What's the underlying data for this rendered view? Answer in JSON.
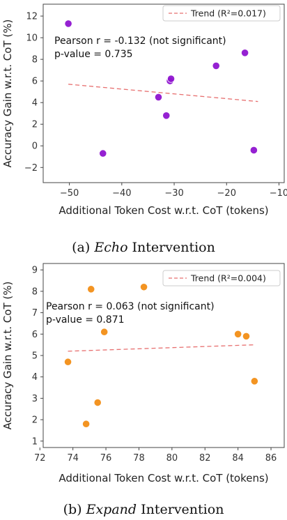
{
  "chart_data": [
    {
      "type": "scatter",
      "xlabel": "Additional Token Cost w.r.t. CoT (tokens)",
      "ylabel": "Accuracy Gain w.r.t. CoT (%)",
      "xlim": [
        -55,
        -9
      ],
      "ylim": [
        -3.4,
        13.1
      ],
      "xticks": [
        -50,
        -40,
        -30,
        -20,
        -10
      ],
      "yticks": [
        -2,
        0,
        2,
        4,
        6,
        8,
        10,
        12
      ],
      "grid": false,
      "point_color": "#8f15d0",
      "trend_color": "#e76f6f",
      "legend_position": "top-right",
      "series": [
        {
          "x": [
            -50.2,
            -43.6,
            -33.0,
            -31.5,
            -30.8,
            -30.6,
            -22.0,
            -16.5,
            -14.8
          ],
          "y": [
            11.3,
            -0.7,
            4.5,
            2.8,
            6.0,
            6.2,
            7.4,
            8.6,
            -0.4
          ]
        }
      ],
      "trend": {
        "label": "Trend (R²=0.017)",
        "x": [
          -50.2,
          -14.0
        ],
        "y": [
          5.7,
          4.1
        ]
      },
      "annotations": [
        "Pearson r = -0.132 (not significant)",
        "p-value = 0.735"
      ],
      "caption": {
        "prefix": "(a) ",
        "emphasis": "Echo",
        "suffix": " Intervention"
      }
    },
    {
      "type": "scatter",
      "xlabel": "Additional Token Cost w.r.t. CoT (tokens)",
      "ylabel": "Accuracy Gain w.r.t. CoT (%)",
      "xlim": [
        72.2,
        86.8
      ],
      "ylim": [
        0.7,
        9.3
      ],
      "xticks": [
        72,
        74,
        76,
        78,
        80,
        82,
        84,
        86
      ],
      "yticks": [
        1,
        2,
        3,
        4,
        5,
        6,
        7,
        8,
        9
      ],
      "grid": false,
      "point_color": "#f28e16",
      "trend_color": "#e76f6f",
      "legend_position": "top-right",
      "series": [
        {
          "x": [
            73.7,
            74.8,
            75.1,
            75.5,
            75.9,
            78.3,
            84.0,
            84.5,
            85.0
          ],
          "y": [
            4.7,
            1.8,
            8.1,
            2.8,
            6.1,
            8.2,
            6.0,
            5.9,
            3.8
          ]
        }
      ],
      "trend": {
        "label": "Trend (R²=0.004)",
        "x": [
          73.7,
          85.0
        ],
        "y": [
          5.2,
          5.5
        ]
      },
      "annotations": [
        "Pearson r = 0.063 (not significant)",
        "p-value = 0.871"
      ],
      "caption": {
        "prefix": "(b) ",
        "emphasis": "Expand",
        "suffix": " Intervention"
      }
    }
  ]
}
